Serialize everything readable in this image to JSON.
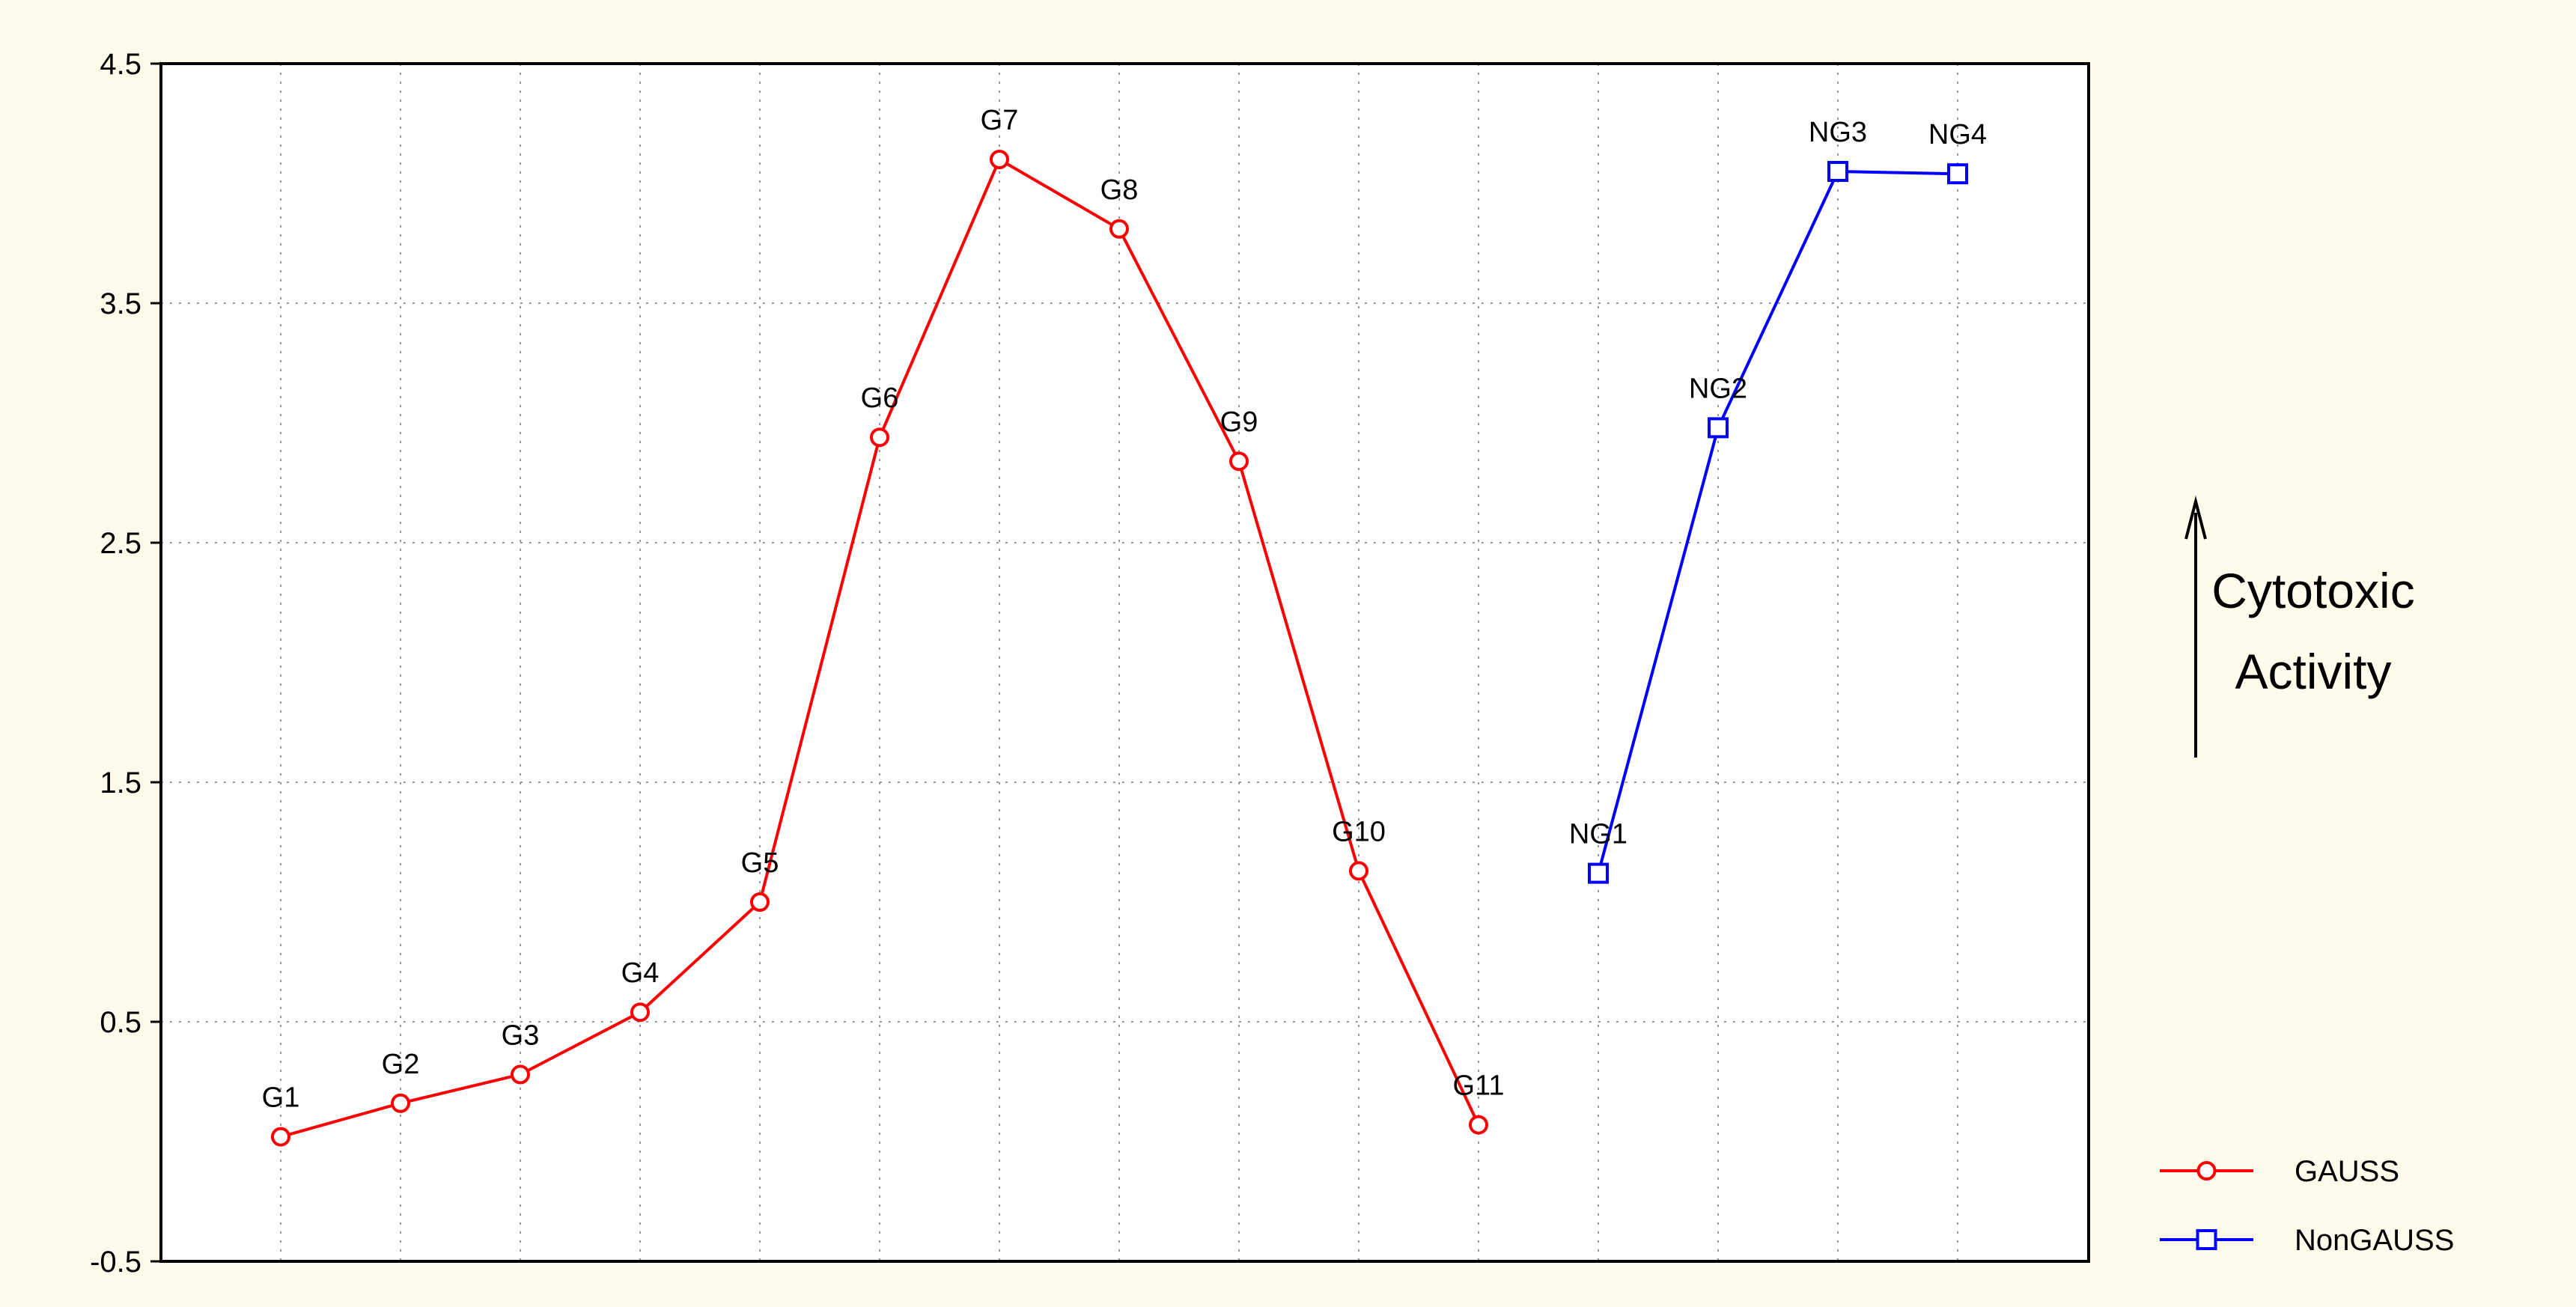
{
  "chart_data": {
    "type": "line",
    "title": "",
    "xlabel": "",
    "ylabel": "",
    "ylim": [
      -0.5,
      4.5
    ],
    "yticks": [
      -0.5,
      0.5,
      1.5,
      2.5,
      3.5,
      4.5
    ],
    "ytick_labels": [
      "-0.5",
      "0.5",
      "1.5",
      "2.5",
      "3.5",
      "4.5"
    ],
    "x_positions": 15,
    "grid": true,
    "legend_position": "bottom-right",
    "series": [
      {
        "name": "GAUSS",
        "color": "#ff0000",
        "marker": "circle",
        "points": [
          {
            "label": "G1",
            "x": 1,
            "y": 0.02
          },
          {
            "label": "G2",
            "x": 2,
            "y": 0.16
          },
          {
            "label": "G3",
            "x": 3,
            "y": 0.28
          },
          {
            "label": "G4",
            "x": 4,
            "y": 0.54
          },
          {
            "label": "G5",
            "x": 5,
            "y": 1.0
          },
          {
            "label": "G6",
            "x": 6,
            "y": 2.94
          },
          {
            "label": "G7",
            "x": 7,
            "y": 4.1
          },
          {
            "label": "G8",
            "x": 8,
            "y": 3.81
          },
          {
            "label": "G9",
            "x": 9,
            "y": 2.84
          },
          {
            "label": "G10",
            "x": 10,
            "y": 1.13
          },
          {
            "label": "G11",
            "x": 11,
            "y": 0.07
          }
        ]
      },
      {
        "name": "NonGAUSS",
        "color": "#0000ff",
        "marker": "square",
        "points": [
          {
            "label": "NG1",
            "x": 12,
            "y": 1.12
          },
          {
            "label": "NG2",
            "x": 13,
            "y": 2.98
          },
          {
            "label": "NG3",
            "x": 14,
            "y": 4.05
          },
          {
            "label": "NG4",
            "x": 15,
            "y": 4.04
          }
        ]
      }
    ],
    "annotation": {
      "lines": [
        "Cytotoxic",
        "Activity"
      ],
      "arrow": "up"
    }
  }
}
